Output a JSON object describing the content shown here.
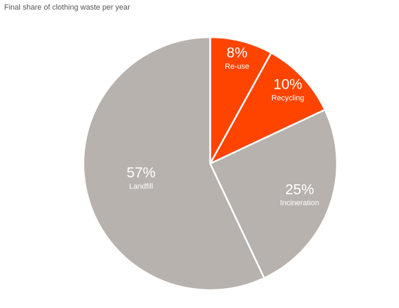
{
  "chart_data": {
    "type": "pie",
    "title": "Final share of clothing waste per year",
    "categories": [
      "Re-use",
      "Recycling",
      "Incineration",
      "Landfill"
    ],
    "values": [
      8,
      10,
      25,
      57
    ],
    "value_labels": [
      "8%",
      "10%",
      "25%",
      "57%"
    ],
    "colors": [
      "#ff4400",
      "#ff4400",
      "#b7b2ae",
      "#b7b2ae"
    ]
  }
}
